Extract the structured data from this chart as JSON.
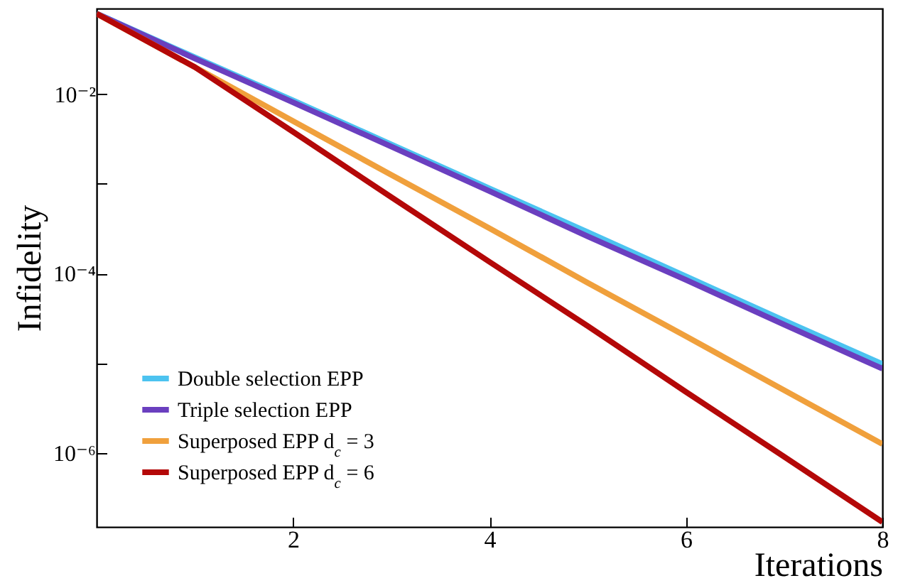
{
  "chart_data": {
    "type": "line",
    "xlabel": "Iterations",
    "ylabel": "Infidelity",
    "x": [
      0,
      1,
      2,
      3,
      4,
      5,
      6,
      7,
      8
    ],
    "series": [
      {
        "name": "Double selection EPP",
        "color": "#4cc3f0",
        "values": [
          0.079,
          0.0257,
          0.0085,
          0.00275,
          0.00089,
          0.00029,
          9.3e-05,
          3e-05,
          9.8e-06
        ]
      },
      {
        "name": "Triple selection EPP",
        "color": "#6a3fbf",
        "values": [
          0.079,
          0.025,
          0.0081,
          0.0026,
          0.00083,
          0.00026,
          8.5e-05,
          2.7e-05,
          8.7e-06
        ]
      },
      {
        "name": "Superposed EPP d$_{c}$ = 3",
        "color": "#f0a03c",
        "values": [
          0.079,
          0.02,
          0.005,
          0.00126,
          0.00032,
          7.9e-05,
          2e-05,
          5e-06,
          1.26e-06
        ]
      },
      {
        "name": "Superposed EPP d$_{c}$ = 6",
        "color": "#b40808",
        "values": [
          0.079,
          0.02,
          0.0038,
          0.00071,
          0.000135,
          2.6e-05,
          4.8e-06,
          9.1e-07,
          1.7e-07
        ]
      }
    ],
    "xlim": [
      0,
      8
    ],
    "xticks": [
      2,
      4,
      6,
      8
    ],
    "ylim": [
      1.5e-07,
      0.09
    ],
    "yticks": [
      {
        "value": 0.01,
        "label": "10⁻²"
      },
      {
        "value": 0.001,
        "label": null
      },
      {
        "value": 0.0001,
        "label": "10⁻⁴"
      },
      {
        "value": 1e-05,
        "label": null
      },
      {
        "value": 1e-06,
        "label": "10⁻⁶"
      }
    ],
    "log": "y",
    "grid": false,
    "legend": "bottom left",
    "marker": "none",
    "line_style": "solid"
  }
}
